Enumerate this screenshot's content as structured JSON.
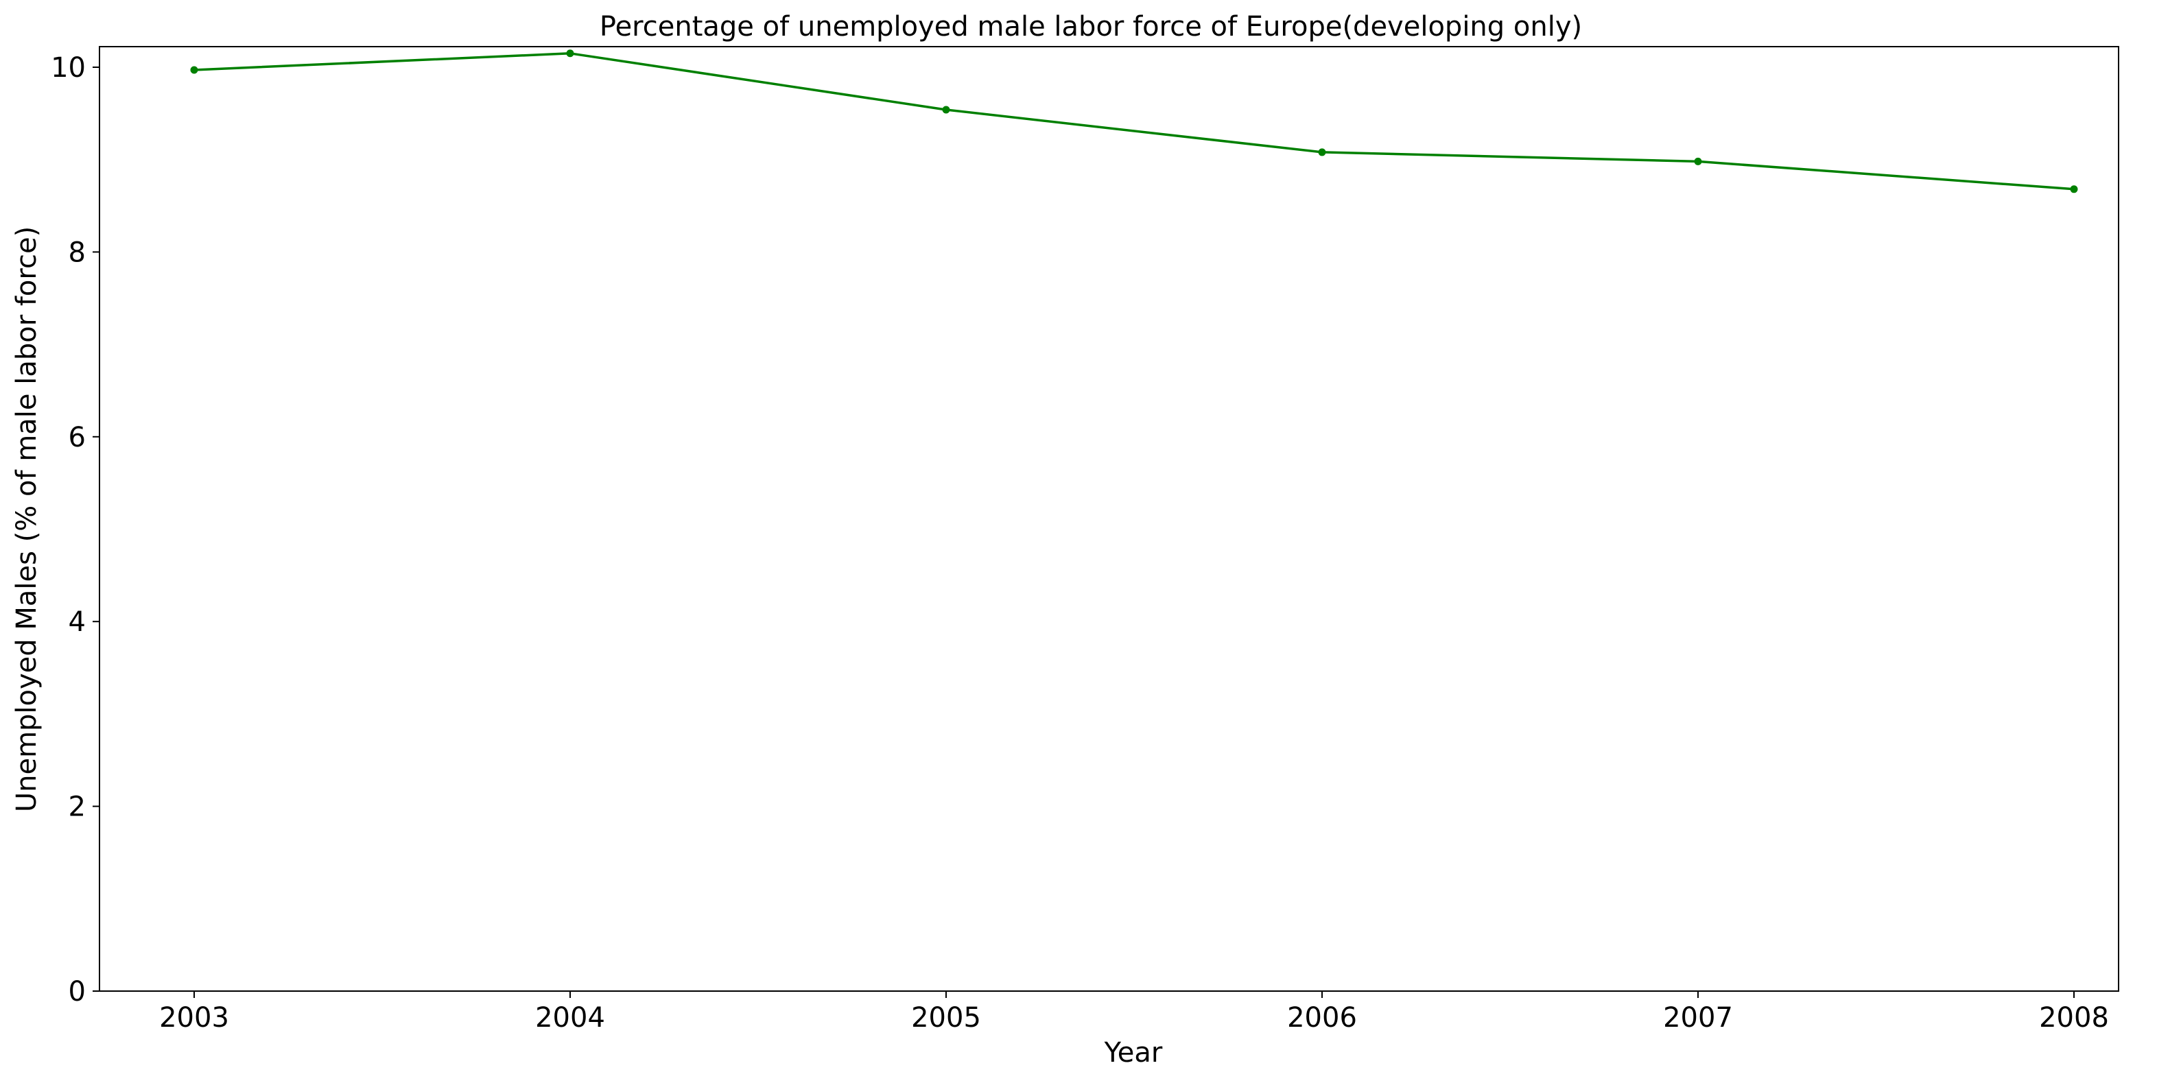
{
  "chart_data": {
    "type": "line",
    "title": "Percentage of unemployed male labor force of Europe(developing only)",
    "xlabel": "Year",
    "ylabel": "Unemployed Males (% of male labor force)",
    "x": [
      "2003",
      "2004",
      "2005",
      "2006",
      "2007",
      "2008"
    ],
    "series": [
      {
        "values": [
          9.97,
          10.15,
          9.54,
          9.08,
          8.98,
          8.68
        ],
        "color": "#008000",
        "marker": "dot"
      }
    ],
    "ylim": [
      0,
      10.2
    ],
    "yticks": [
      "0",
      "2",
      "4",
      "6",
      "8",
      "10"
    ],
    "grid": false,
    "legend": "none"
  }
}
